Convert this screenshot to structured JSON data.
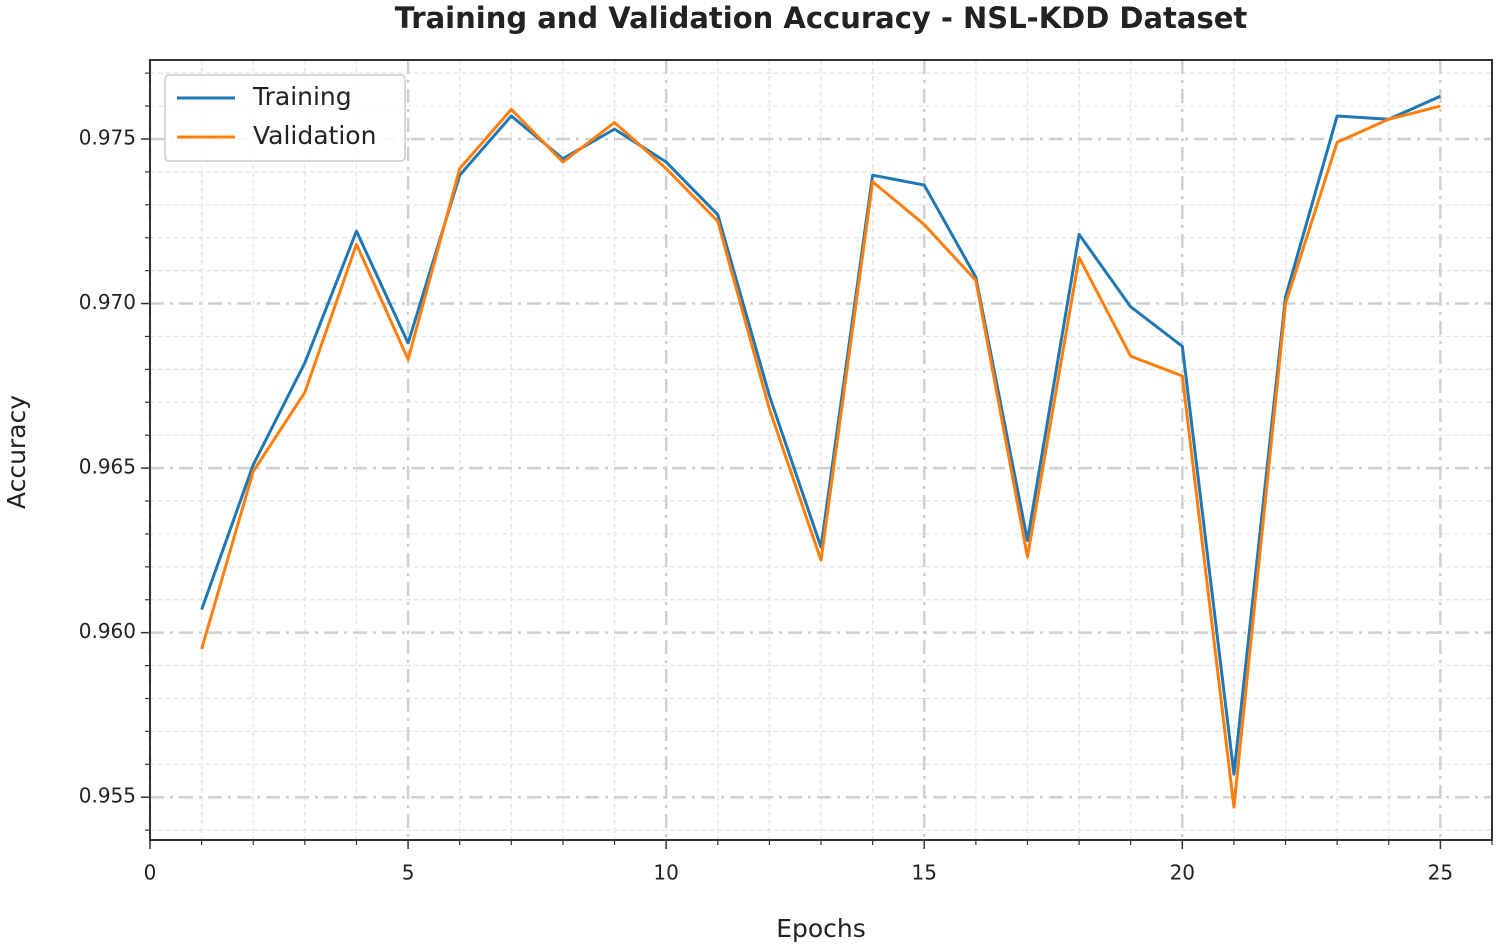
{
  "chart_data": {
    "type": "line",
    "title": "Training and Validation Accuracy - NSL-KDD Dataset",
    "xlabel": "Epochs",
    "ylabel": "Accuracy",
    "x": [
      1,
      2,
      3,
      4,
      5,
      6,
      7,
      8,
      9,
      10,
      11,
      12,
      13,
      14,
      15,
      16,
      17,
      18,
      19,
      20,
      21,
      22,
      23,
      24,
      25
    ],
    "series": [
      {
        "name": "Training",
        "color": "#1f77b4",
        "values": [
          0.9607,
          0.9651,
          0.9682,
          0.9722,
          0.9688,
          0.9739,
          0.9757,
          0.9744,
          0.9753,
          0.9743,
          0.9727,
          0.9672,
          0.9626,
          0.9739,
          0.9736,
          0.9708,
          0.9628,
          0.9721,
          0.9699,
          0.9687,
          0.9557,
          0.9702,
          0.9757,
          0.9756,
          0.9763
        ]
      },
      {
        "name": "Validation",
        "color": "#ff7f0e",
        "values": [
          0.9595,
          0.9649,
          0.9673,
          0.9718,
          0.9683,
          0.9741,
          0.9759,
          0.9743,
          0.9755,
          0.9741,
          0.9725,
          0.9668,
          0.9622,
          0.9737,
          0.9724,
          0.9707,
          0.9623,
          0.9714,
          0.9684,
          0.9678,
          0.9547,
          0.97,
          0.9749,
          0.9756,
          0.976
        ]
      }
    ],
    "xlim": [
      0,
      26
    ],
    "xticks": [
      0,
      5,
      10,
      15,
      20,
      25
    ],
    "ylim": [
      0.9537,
      0.9774
    ],
    "yticks": [
      0.955,
      {
        "value": 0.96,
        "label": "0.960"
      },
      0.965,
      {
        "value": 0.97,
        "label": "0.970"
      },
      0.975
    ],
    "grid": true,
    "minor_grid": true,
    "legend": "upper-left"
  }
}
